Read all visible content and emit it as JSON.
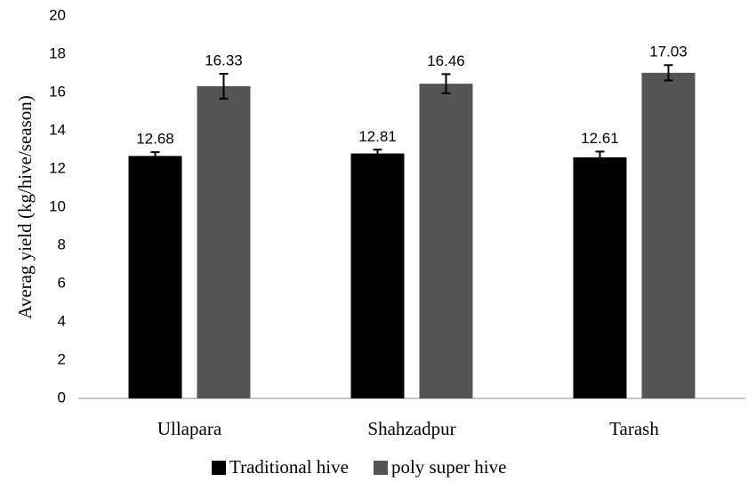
{
  "chart_data": {
    "type": "bar",
    "y_label": "Averag yield (kg/hive/season)",
    "categories": [
      "Ullapara",
      "Shahzadpur",
      "Tarash"
    ],
    "series": [
      {
        "name": "Traditional hive",
        "color": "#000000",
        "values": [
          12.68,
          12.81,
          12.61
        ],
        "errors": [
          0.2,
          0.2,
          0.3
        ]
      },
      {
        "name": "poly super hive",
        "color": "#555555",
        "values": [
          16.33,
          16.46,
          17.03
        ],
        "errors": [
          0.65,
          0.5,
          0.4
        ]
      }
    ],
    "ylim": [
      0,
      20
    ],
    "yticks": [
      0,
      2,
      4,
      6,
      8,
      10,
      12,
      14,
      16,
      18,
      20
    ],
    "grid": false,
    "legend": "bottom"
  }
}
